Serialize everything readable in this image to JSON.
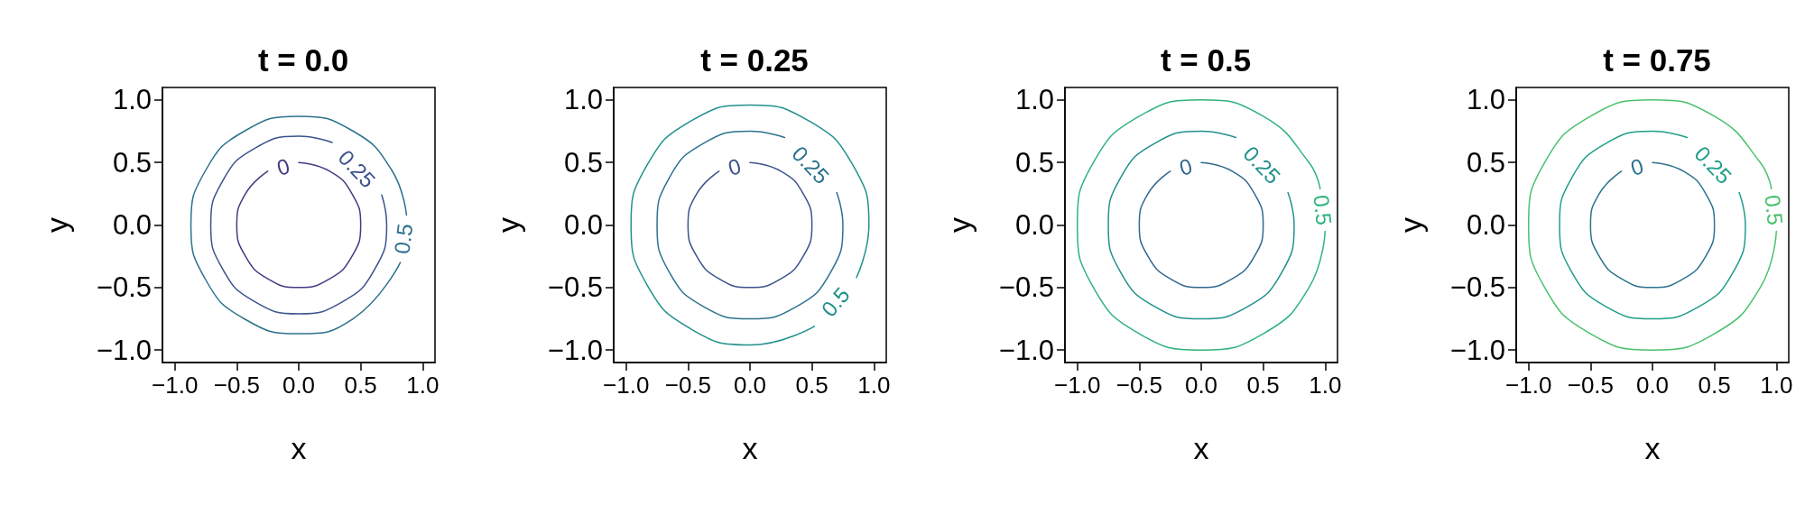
{
  "chart_data": [
    {
      "type": "line",
      "title": "t = 0.0",
      "xlabel": "x",
      "ylabel": "y",
      "xlim": [
        -1.1,
        1.1
      ],
      "ylim": [
        -1.1,
        1.1
      ],
      "xticks": [
        {
          "value": -1,
          "label": "−1.0"
        },
        {
          "value": -0.5,
          "label": "−0.5"
        },
        {
          "value": 0,
          "label": "0.0"
        },
        {
          "value": 0.5,
          "label": "0.5"
        },
        {
          "value": 1,
          "label": "1.0"
        }
      ],
      "yticks": [
        {
          "value": -1,
          "label": "−1.0"
        },
        {
          "value": -0.5,
          "label": "−0.5"
        },
        {
          "value": 0,
          "label": "0.0"
        },
        {
          "value": 0.5,
          "label": "0.5"
        },
        {
          "value": 1,
          "label": "1.0"
        }
      ],
      "grid": false,
      "legend": false,
      "marker": "none",
      "line_style": "solid",
      "series": [
        {
          "name": "0",
          "color": "#443a83",
          "x": [
            0,
            0.25,
            0.43,
            0.5,
            0.43,
            0.25,
            0,
            -0.25,
            -0.43,
            -0.5,
            -0.43,
            -0.25
          ],
          "values": [
            0.5,
            0.43,
            0.25,
            0,
            -0.25,
            -0.43,
            -0.5,
            -0.43,
            -0.25,
            0,
            0.25,
            0.43
          ]
        },
        {
          "name": "0.25",
          "color": "#3b528b",
          "x": [
            0.67,
            0.71,
            0.61,
            0.36,
            0,
            -0.36,
            -0.61,
            -0.71,
            -0.61,
            -0.36,
            0,
            0.27
          ],
          "values": [
            0.24,
            0,
            -0.36,
            -0.61,
            -0.71,
            -0.61,
            -0.36,
            0,
            0.36,
            0.61,
            0.71,
            0.66
          ]
        },
        {
          "name": "0.5",
          "color": "#2c728e",
          "x": [
            0.82,
            0.44,
            0,
            -0.44,
            -0.75,
            -0.87,
            -0.75,
            -0.44,
            0,
            0.44,
            0.75,
            0.87
          ],
          "values": [
            -0.3,
            -0.75,
            -0.87,
            -0.75,
            -0.44,
            0,
            0.44,
            0.75,
            0.87,
            0.75,
            0.44,
            0.08
          ]
        }
      ]
    },
    {
      "type": "line",
      "title": "t = 0.25",
      "xlabel": "x",
      "ylabel": "y",
      "xlim": [
        -1.1,
        1.1
      ],
      "ylim": [
        -1.1,
        1.1
      ],
      "xticks": [
        {
          "value": -1,
          "label": "−1.0"
        },
        {
          "value": -0.5,
          "label": "−0.5"
        },
        {
          "value": 0,
          "label": "0.0"
        },
        {
          "value": 0.5,
          "label": "0.5"
        },
        {
          "value": 1,
          "label": "1.0"
        }
      ],
      "yticks": [
        {
          "value": -1,
          "label": "−1.0"
        },
        {
          "value": -0.5,
          "label": "−0.5"
        },
        {
          "value": 0,
          "label": "0.0"
        },
        {
          "value": 0.5,
          "label": "0.5"
        },
        {
          "value": 1,
          "label": "1.0"
        }
      ],
      "grid": false,
      "legend": false,
      "marker": "none",
      "line_style": "solid",
      "series": [
        {
          "name": "0",
          "color": "#3b528b",
          "x": [
            0,
            0.25,
            0.43,
            0.5,
            0.43,
            0.25,
            0,
            -0.25,
            -0.43,
            -0.5,
            -0.43,
            -0.25
          ],
          "values": [
            0.5,
            0.43,
            0.25,
            0,
            -0.25,
            -0.43,
            -0.5,
            -0.43,
            -0.25,
            0,
            0.25,
            0.43
          ]
        },
        {
          "name": "0.25",
          "color": "#2c728e",
          "x": [
            0.7,
            0.75,
            0.65,
            0.38,
            0,
            -0.38,
            -0.65,
            -0.75,
            -0.65,
            -0.38,
            0,
            0.28
          ],
          "values": [
            0.26,
            0,
            -0.38,
            -0.65,
            -0.75,
            -0.65,
            -0.38,
            0,
            0.38,
            0.65,
            0.75,
            0.7
          ]
        },
        {
          "name": "0.5",
          "color": "#21918c",
          "x": [
            0.52,
            0,
            -0.48,
            -0.83,
            -0.96,
            -0.83,
            -0.48,
            0,
            0.48,
            0.83,
            0.96,
            0.86
          ],
          "values": [
            -0.81,
            -0.96,
            -0.83,
            -0.48,
            0,
            0.48,
            0.83,
            0.96,
            0.83,
            0.48,
            0,
            -0.42
          ]
        }
      ]
    },
    {
      "type": "line",
      "title": "t = 0.5",
      "xlabel": "x",
      "ylabel": "y",
      "xlim": [
        -1.1,
        1.1
      ],
      "ylim": [
        -1.1,
        1.1
      ],
      "xticks": [
        {
          "value": -1,
          "label": "−1.0"
        },
        {
          "value": -0.5,
          "label": "−0.5"
        },
        {
          "value": 0,
          "label": "0.0"
        },
        {
          "value": 0.5,
          "label": "0.5"
        },
        {
          "value": 1,
          "label": "1.0"
        }
      ],
      "yticks": [
        {
          "value": -1,
          "label": "−1.0"
        },
        {
          "value": -0.5,
          "label": "−0.5"
        },
        {
          "value": 0,
          "label": "0.0"
        },
        {
          "value": 0.5,
          "label": "0.5"
        },
        {
          "value": 1,
          "label": "1.0"
        }
      ],
      "grid": false,
      "legend": false,
      "marker": "none",
      "line_style": "solid",
      "series": [
        {
          "name": "0",
          "color": "#31688e",
          "x": [
            0,
            0.25,
            0.43,
            0.5,
            0.43,
            0.25,
            0,
            -0.25,
            -0.43,
            -0.5,
            -0.43,
            -0.25
          ],
          "values": [
            0.5,
            0.43,
            0.25,
            0,
            -0.25,
            -0.43,
            -0.5,
            -0.43,
            -0.25,
            0,
            0.25,
            0.43
          ]
        },
        {
          "name": "0.25",
          "color": "#21918c",
          "x": [
            0.7,
            0.75,
            0.65,
            0.38,
            0,
            -0.38,
            -0.65,
            -0.75,
            -0.65,
            -0.38,
            0,
            0.28
          ],
          "values": [
            0.26,
            0,
            -0.38,
            -0.65,
            -0.75,
            -0.65,
            -0.38,
            0,
            0.38,
            0.65,
            0.75,
            0.7
          ]
        },
        {
          "name": "0.5",
          "color": "#2fb47c",
          "x": [
            1,
            0.87,
            0.5,
            0,
            -0.5,
            -0.87,
            -1,
            -0.87,
            -0.5,
            0,
            0.5,
            0.87,
            0.96
          ],
          "values": [
            -0.05,
            -0.5,
            -0.87,
            -1,
            -0.87,
            -0.5,
            0,
            0.5,
            0.87,
            1,
            0.87,
            0.5,
            0.29
          ]
        }
      ]
    },
    {
      "type": "line",
      "title": "t = 0.75",
      "xlabel": "x",
      "ylabel": "y",
      "xlim": [
        -1.1,
        1.1
      ],
      "ylim": [
        -1.1,
        1.1
      ],
      "xticks": [
        {
          "value": -1,
          "label": "−1.0"
        },
        {
          "value": -0.5,
          "label": "−0.5"
        },
        {
          "value": 0,
          "label": "0.0"
        },
        {
          "value": 0.5,
          "label": "0.5"
        },
        {
          "value": 1,
          "label": "1.0"
        }
      ],
      "yticks": [
        {
          "value": -1,
          "label": "−1.0"
        },
        {
          "value": -0.5,
          "label": "−0.5"
        },
        {
          "value": 0,
          "label": "0.0"
        },
        {
          "value": 0.5,
          "label": "0.5"
        },
        {
          "value": 1,
          "label": "1.0"
        }
      ],
      "grid": false,
      "legend": false,
      "marker": "none",
      "line_style": "solid",
      "series": [
        {
          "name": "0",
          "color": "#2c728e",
          "x": [
            0,
            0.25,
            0.43,
            0.5,
            0.43,
            0.25,
            0,
            -0.25,
            -0.43,
            -0.5,
            -0.43,
            -0.25
          ],
          "values": [
            0.5,
            0.43,
            0.25,
            0,
            -0.25,
            -0.43,
            -0.5,
            -0.43,
            -0.25,
            0,
            0.25,
            0.43
          ]
        },
        {
          "name": "0.25",
          "color": "#1f9e89",
          "x": [
            0.7,
            0.75,
            0.65,
            0.38,
            0,
            -0.38,
            -0.65,
            -0.75,
            -0.65,
            -0.38,
            0,
            0.28
          ],
          "values": [
            0.26,
            0,
            -0.38,
            -0.65,
            -0.75,
            -0.65,
            -0.38,
            0,
            0.38,
            0.65,
            0.75,
            0.7
          ]
        },
        {
          "name": "0.5",
          "color": "#4ac16d",
          "x": [
            1,
            0.87,
            0.5,
            0,
            -0.5,
            -0.87,
            -1,
            -0.87,
            -0.5,
            0,
            0.5,
            0.87,
            0.96
          ],
          "values": [
            -0.05,
            -0.5,
            -0.87,
            -1,
            -0.87,
            -0.5,
            0,
            0.5,
            0.87,
            1,
            0.87,
            0.5,
            0.29
          ]
        }
      ]
    }
  ]
}
